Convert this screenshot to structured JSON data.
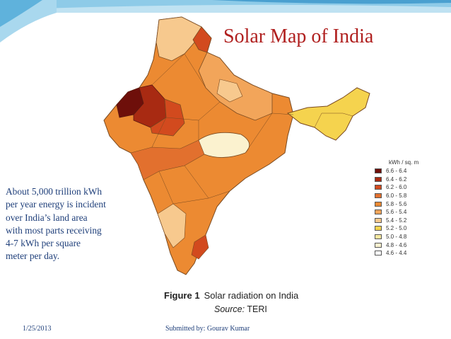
{
  "slide": {
    "title": "Solar Map of India",
    "description_lines": [
      "About 5,000 trillion kWh",
      "per year energy is incident",
      "over India’s land area",
      "with most parts receiving",
      "4-7 kWh per square",
      "meter per day."
    ],
    "date": "1/25/2013",
    "footer": "Submitted by: Gourav Kumar"
  },
  "figure": {
    "label": "Figure 1",
    "caption": "Solar radiation on India",
    "source_label": "Source:",
    "source_name": "TERI"
  },
  "legend": {
    "unit": "kWh / sq. m",
    "items": [
      {
        "label": "6.6 - 6.4",
        "color": "#6e0f0a"
      },
      {
        "label": "6.4 - 6.2",
        "color": "#a82a12"
      },
      {
        "label": "6.2 - 6.0",
        "color": "#d24a1e"
      },
      {
        "label": "6.0 - 5.8",
        "color": "#e2702e"
      },
      {
        "label": "5.8 - 5.6",
        "color": "#ec8a32"
      },
      {
        "label": "5.6 - 5.4",
        "color": "#f2a55a"
      },
      {
        "label": "5.4 - 5.2",
        "color": "#f7c98e"
      },
      {
        "label": "5.2 - 5.0",
        "color": "#f5d34e"
      },
      {
        "label": "5.0 - 4.8",
        "color": "#f8e8a0"
      },
      {
        "label": "4.8 - 4.6",
        "color": "#fbf2cf"
      },
      {
        "label": "4.6 - 4.4",
        "color": "#ffffff"
      }
    ]
  },
  "colors": {
    "title": "#b0201f",
    "text": "#1f3f7a",
    "accent_blue": "#5aa9d6"
  }
}
